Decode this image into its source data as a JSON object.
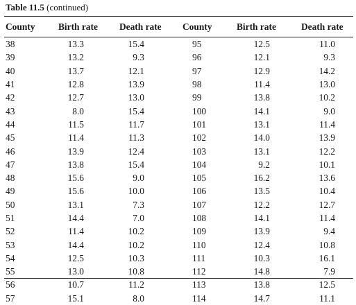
{
  "caption": {
    "label": "Table 11.5",
    "note": "(continued)"
  },
  "headers": [
    "County",
    "Birth rate",
    "Death rate",
    "County",
    "Birth rate",
    "Death rate"
  ],
  "rows": [
    [
      "38",
      "13.3",
      "15.4",
      "95",
      "12.5",
      "11.0"
    ],
    [
      "39",
      "13.2",
      "9.3",
      "96",
      "12.1",
      "9.3"
    ],
    [
      "40",
      "13.7",
      "12.1",
      "97",
      "12.9",
      "14.2"
    ],
    [
      "41",
      "12.8",
      "13.9",
      "98",
      "11.4",
      "13.0"
    ],
    [
      "42",
      "12.7",
      "13.0",
      "99",
      "13.8",
      "10.2"
    ],
    [
      "43",
      "8.0",
      "15.4",
      "100",
      "14.1",
      "9.0"
    ],
    [
      "44",
      "11.5",
      "11.7",
      "101",
      "13.1",
      "11.4"
    ],
    [
      "45",
      "11.4",
      "11.3",
      "102",
      "14.0",
      "13.9"
    ],
    [
      "46",
      "13.9",
      "12.4",
      "103",
      "13.1",
      "12.2"
    ],
    [
      "47",
      "13.8",
      "15.4",
      "104",
      "9.2",
      "10.1"
    ],
    [
      "48",
      "15.6",
      "9.0",
      "105",
      "16.2",
      "13.6"
    ],
    [
      "49",
      "15.6",
      "10.0",
      "106",
      "13.5",
      "10.4"
    ],
    [
      "50",
      "13.1",
      "7.3",
      "107",
      "12.2",
      "12.7"
    ],
    [
      "51",
      "14.4",
      "7.0",
      "108",
      "14.1",
      "11.4"
    ],
    [
      "52",
      "11.4",
      "10.2",
      "109",
      "13.9",
      "9.4"
    ],
    [
      "53",
      "14.4",
      "10.2",
      "110",
      "12.4",
      "10.8"
    ],
    [
      "54",
      "12.5",
      "10.3",
      "111",
      "10.3",
      "16.1"
    ],
    [
      "55",
      "13.0",
      "10.8",
      "112",
      "14.8",
      "7.9"
    ],
    [
      "56",
      "10.7",
      "11.2",
      "113",
      "13.8",
      "12.5"
    ],
    [
      "57",
      "15.1",
      "8.0",
      "114",
      "14.7",
      "11.1"
    ]
  ]
}
